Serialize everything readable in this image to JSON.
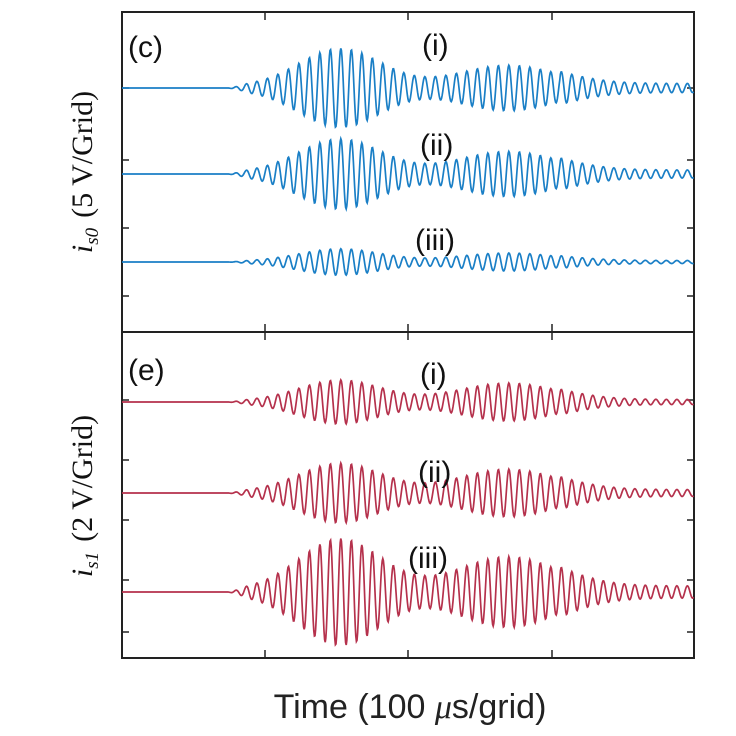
{
  "chart_data": [
    {
      "type": "line",
      "panel_label": "(c)",
      "ylabel": {
        "var": "i",
        "sub": "s0",
        "scale": "(5 V/Grid)"
      },
      "color": "#1a7fc6",
      "traces": [
        {
          "label": "(i)",
          "burst1_peak_amplitude_V": 9.0,
          "burst2_peak_amplitude_V": 5.0
        },
        {
          "label": "(ii)",
          "burst1_peak_amplitude_V": 8.0,
          "burst2_peak_amplitude_V": 5.0
        },
        {
          "label": "(iii)",
          "burst1_peak_amplitude_V": 3.0,
          "burst2_peak_amplitude_V": 2.0
        }
      ]
    },
    {
      "type": "line",
      "panel_label": "(e)",
      "ylabel": {
        "var": "i",
        "sub": "s1",
        "scale": "(2 V/Grid)"
      },
      "color": "#b5314c",
      "traces": [
        {
          "label": "(i)",
          "burst1_peak_amplitude_V": 1.4,
          "burst2_peak_amplitude_V": 1.2
        },
        {
          "label": "(ii)",
          "burst1_peak_amplitude_V": 1.9,
          "burst2_peak_amplitude_V": 1.5
        },
        {
          "label": "(iii)",
          "burst1_peak_amplitude_V": 3.4,
          "burst2_peak_amplitude_V": 2.2
        }
      ]
    }
  ],
  "xaxis": {
    "label_prefix": "Time (100 ",
    "label_mu": "μ",
    "label_suffix": "s/grid)"
  }
}
